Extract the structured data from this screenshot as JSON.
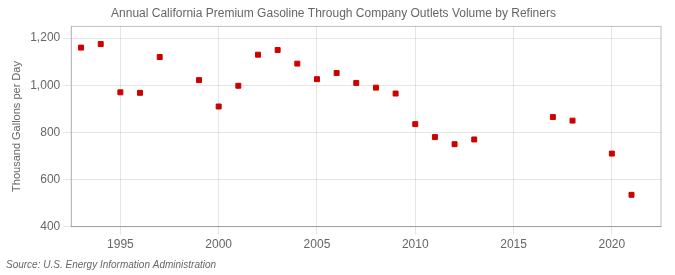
{
  "chart_data": {
    "type": "scatter",
    "title": "Annual California Premium Gasoline Through Company Outlets Volume by Refiners",
    "ylabel": "Thousand Gallons per Day",
    "source": "Source: U.S. Energy Information Administration",
    "x": [
      1993,
      1994,
      1995,
      1996,
      1997,
      1999,
      2000,
      2001,
      2002,
      2003,
      2004,
      2005,
      2006,
      2007,
      2008,
      2009,
      2010,
      2011,
      2012,
      2013,
      2017,
      2018,
      2020,
      2021
    ],
    "values": [
      1160,
      1175,
      970,
      968,
      1120,
      1022,
      910,
      998,
      1130,
      1150,
      1092,
      1026,
      1052,
      1010,
      990,
      965,
      835,
      780,
      750,
      770,
      865,
      850,
      710,
      535
    ],
    "color": "#cc0000",
    "marker": "square",
    "xlim": [
      1992.5,
      2022.5
    ],
    "ylim": [
      400,
      1250
    ],
    "xticks": [
      1995,
      2000,
      2005,
      2010,
      2015,
      2020
    ],
    "yticks": [
      400,
      600,
      800,
      {
        "value": 1000,
        "label": "1,000"
      },
      {
        "value": 1200,
        "label": "1,200"
      }
    ],
    "grid": true
  }
}
